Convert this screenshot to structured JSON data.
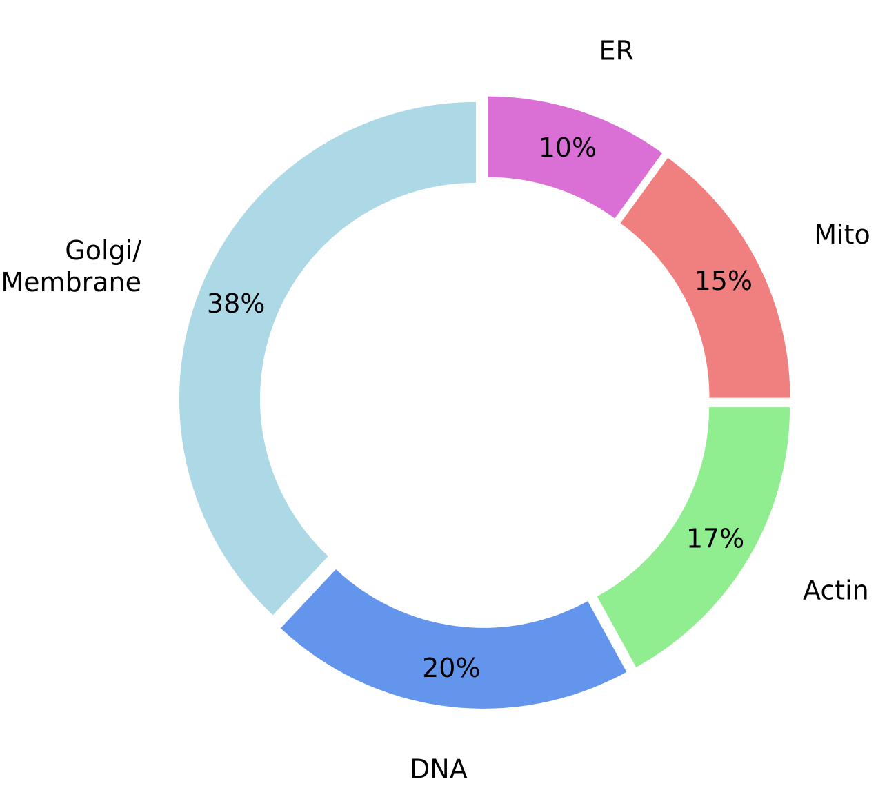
{
  "chart_data": {
    "type": "pie",
    "variant": "donut",
    "start_angle_deg": 0,
    "direction": "counterclockwise",
    "categories": [
      "Mito",
      "ER",
      "Golgi/\nMembrane",
      "DNA",
      "Actin"
    ],
    "values": [
      15,
      10,
      38,
      20,
      17
    ],
    "percent_labels": [
      "15%",
      "10%",
      "38%",
      "20%",
      "17%"
    ],
    "colors": [
      "#f08080",
      "#da70d6",
      "#add8e6",
      "#6495ed",
      "#90ee90"
    ],
    "title": "",
    "legend": "none"
  }
}
